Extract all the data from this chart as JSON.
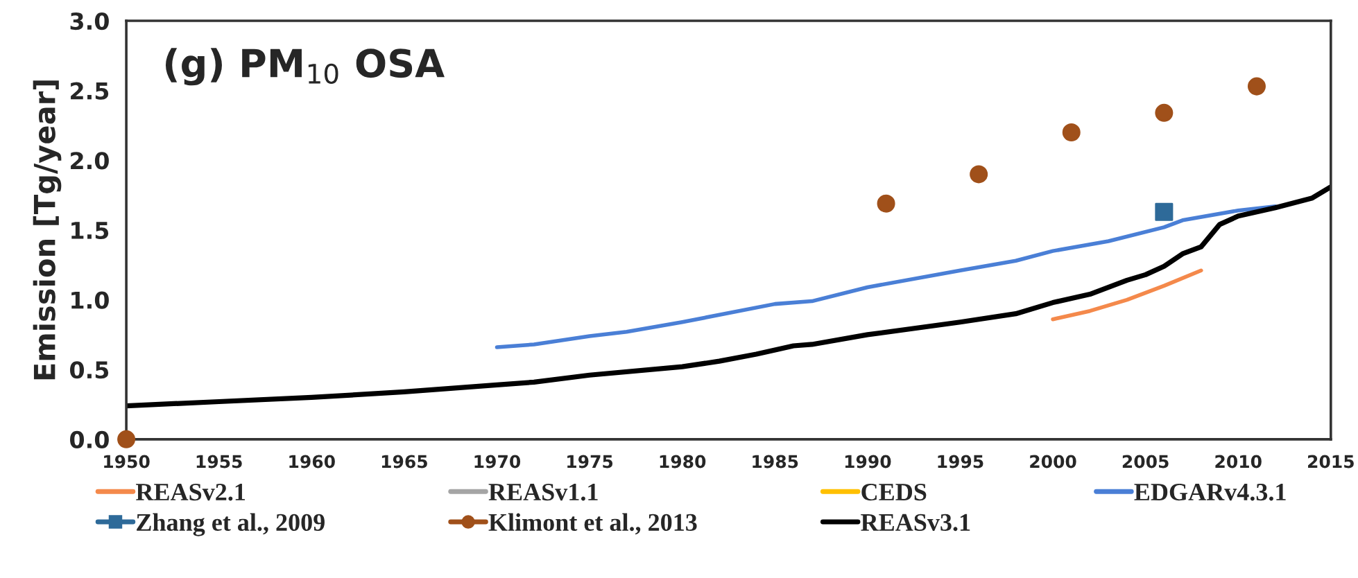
{
  "chart_data": {
    "type": "line",
    "title": "(g) PM$_{10}$ OSA",
    "ylabel": "Emission [Tg/year]",
    "xlim": [
      1950,
      2015
    ],
    "xticks": [
      1950,
      1955,
      1960,
      1965,
      1970,
      1975,
      1980,
      1985,
      1990,
      1995,
      2000,
      2005,
      2010,
      2015
    ],
    "ylim": [
      0,
      3.0
    ],
    "yticks": [
      {
        "value": 0,
        "label": "0.0"
      },
      {
        "value": 0.5,
        "label": "0.5"
      },
      {
        "value": 1.0,
        "label": "1.0"
      },
      {
        "value": 1.5,
        "label": "1.5"
      },
      {
        "value": 2.0,
        "label": "2.0"
      },
      {
        "value": 2.5,
        "label": "2.5"
      },
      {
        "value": 3.0,
        "label": "3.0"
      }
    ],
    "grid": false,
    "legend": "bottom",
    "series": [
      {
        "name": "REASv2.1",
        "color": "#f4894b",
        "x": [
          2000,
          2002,
          2004,
          2006,
          2008
        ],
        "values": [
          0.86,
          0.92,
          1.0,
          1.1,
          1.21
        ]
      },
      {
        "name": "REASv1.1",
        "color": "#a5a5a5"
      },
      {
        "name": "CEDS",
        "color": "#ffc000"
      },
      {
        "name": "EDGARv4.3.1",
        "color": "#4a7fd6",
        "x": [
          1970,
          1972,
          1975,
          1977,
          1980,
          1985,
          1987,
          1990,
          1995,
          1998,
          2000,
          2003,
          2006,
          2007,
          2010,
          2012
        ],
        "values": [
          0.66,
          0.68,
          0.74,
          0.77,
          0.84,
          0.97,
          0.99,
          1.09,
          1.21,
          1.28,
          1.35,
          1.42,
          1.52,
          1.57,
          1.64,
          1.67
        ]
      },
      {
        "name": "Zhang et al., 2009",
        "type": "scatter",
        "marker": "square",
        "color": "#2e6a99",
        "x": [
          2006
        ],
        "values": [
          1.63
        ]
      },
      {
        "name": "Klimont et al., 2013",
        "type": "scatter",
        "marker": "circle",
        "color": "#a0501a",
        "x": [
          1950,
          1991,
          1996,
          2001,
          2006,
          2011
        ],
        "values": [
          0,
          1.69,
          1.9,
          2.2,
          2.34,
          2.53
        ]
      },
      {
        "name": "REASv3.1",
        "color": "#000000",
        "x": [
          1950,
          1955,
          1960,
          1965,
          1970,
          1972,
          1975,
          1980,
          1982,
          1984,
          1986,
          1987,
          1990,
          1995,
          1998,
          2000,
          2002,
          2004,
          2005,
          2006,
          2007,
          2008,
          2009,
          2010,
          2012,
          2014,
          2015
        ],
        "values": [
          0.24,
          0.27,
          0.3,
          0.34,
          0.39,
          0.41,
          0.46,
          0.52,
          0.56,
          0.61,
          0.67,
          0.68,
          0.75,
          0.84,
          0.9,
          0.98,
          1.04,
          1.14,
          1.18,
          1.24,
          1.33,
          1.38,
          1.54,
          1.6,
          1.66,
          1.73,
          1.81
        ]
      }
    ]
  }
}
